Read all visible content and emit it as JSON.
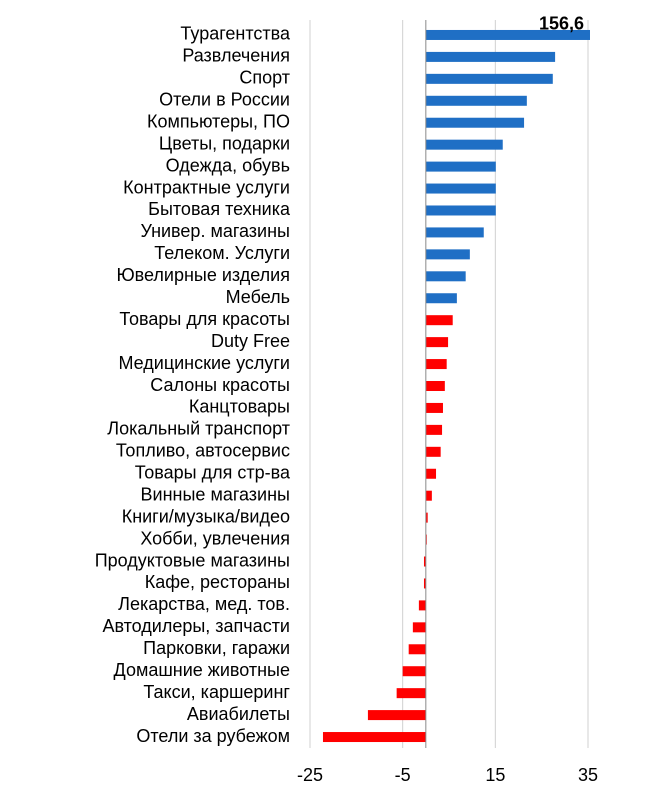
{
  "chart_data": {
    "type": "barh",
    "categories": [
      "Турагентства",
      "Развлечения",
      "Спорт",
      "Отели в России",
      "Компьютеры, ПО",
      "Цветы, подарки",
      "Одежда, обувь",
      "Контрактные услуги",
      "Бытовая техника",
      "Универ. магазины",
      "Телеком. Услуги",
      "Ювелирные изделия",
      "Мебель",
      "Товары для красоты",
      "Duty Free",
      "Медицинские услуги",
      "Салоны красоты",
      "Канцтовары",
      "Локальный транспорт",
      "Топливо, автосервис",
      "Товары для стр-ва",
      "Винные магазины",
      "Книги/музыка/видео",
      "Хобби, увлечения",
      "Продуктовые магазины",
      "Кафе, рестораны",
      "Лекарства, мед. тов.",
      "Автодилеры, запчасти",
      "Парковки, гаражи",
      "Домашние животные",
      "Такси, каршеринг",
      "Авиабилеты",
      "Отели за рубежом"
    ],
    "values": [
      156.6,
      27.9,
      27.4,
      21.8,
      21.2,
      16.6,
      15.1,
      15.1,
      15.1,
      12.5,
      9.5,
      8.6,
      6.7,
      5.8,
      4.8,
      4.5,
      4.1,
      3.7,
      3.5,
      3.2,
      2.2,
      1.3,
      0.4,
      0.2,
      -0.4,
      -0.4,
      -1.5,
      -2.8,
      -3.7,
      -5,
      -6.3,
      -12.5,
      -22.2
    ],
    "value_labels": [
      "156,6",
      null,
      null,
      null,
      null,
      null,
      null,
      null,
      null,
      null,
      null,
      null,
      null,
      null,
      null,
      null,
      null,
      null,
      null,
      null,
      null,
      null,
      null,
      null,
      null,
      null,
      null,
      null,
      null,
      null,
      null,
      null,
      null
    ],
    "colors": [
      "#1f6fc5",
      "#1f6fc5",
      "#1f6fc5",
      "#1f6fc5",
      "#1f6fc5",
      "#1f6fc5",
      "#1f6fc5",
      "#1f6fc5",
      "#1f6fc5",
      "#1f6fc5",
      "#1f6fc5",
      "#1f6fc5",
      "#1f6fc5",
      "#ff0000",
      "#ff0000",
      "#ff0000",
      "#ff0000",
      "#ff0000",
      "#ff0000",
      "#ff0000",
      "#ff0000",
      "#ff0000",
      "#ff0000",
      "#ff0000",
      "#ff0000",
      "#ff0000",
      "#ff0000",
      "#ff0000",
      "#ff0000",
      "#ff0000",
      "#ff0000",
      "#ff0000",
      "#ff0000"
    ],
    "xlim": [
      -25,
      35
    ],
    "xticks": [
      -25,
      -5,
      15,
      35
    ],
    "grid": true
  }
}
